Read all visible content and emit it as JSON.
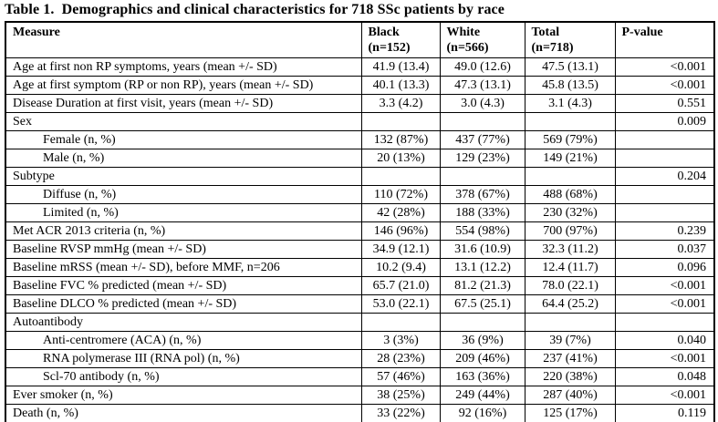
{
  "page": {
    "title": "Table 1.  Demographics and clinical characteristics for 718 SSc patients by race"
  },
  "table": {
    "columns": {
      "measure": {
        "label": "Measure"
      },
      "black": {
        "label": "Black",
        "sublabel": "(n=152)"
      },
      "white": {
        "label": "White",
        "sublabel": "(n=566)"
      },
      "total": {
        "label": "Total",
        "sublabel": "(n=718)"
      },
      "p": {
        "label": "P-value"
      }
    },
    "rows": [
      {
        "measure": "Age at first non RP symptoms, years (mean +/- SD)",
        "indent": false,
        "black": "41.9 (13.4)",
        "white": "49.0 (12.6)",
        "total": "47.5 (13.1)",
        "p": "<0.001"
      },
      {
        "measure": "Age at first symptom (RP or non RP), years (mean +/- SD)",
        "indent": false,
        "black": "40.1 (13.3)",
        "white": "47.3 (13.1)",
        "total": "45.8 (13.5)",
        "p": "<0.001"
      },
      {
        "measure": "Disease Duration at first visit, years (mean +/- SD)",
        "indent": false,
        "black": "3.3 (4.2)",
        "white": "3.0 (4.3)",
        "total": "3.1 (4.3)",
        "p": "0.551"
      },
      {
        "measure": "Sex",
        "indent": false,
        "black": "",
        "white": "",
        "total": "",
        "p": "0.009"
      },
      {
        "measure": "Female (n, %)",
        "indent": true,
        "black": "132 (87%)",
        "white": "437 (77%)",
        "total": "569 (79%)",
        "p": ""
      },
      {
        "measure": "Male (n, %)",
        "indent": true,
        "black": "20 (13%)",
        "white": "129 (23%)",
        "total": "149 (21%)",
        "p": ""
      },
      {
        "measure": "Subtype",
        "indent": false,
        "black": "",
        "white": "",
        "total": "",
        "p": "0.204"
      },
      {
        "measure": "Diffuse (n, %)",
        "indent": true,
        "black": "110 (72%)",
        "white": "378 (67%)",
        "total": "488 (68%)",
        "p": ""
      },
      {
        "measure": "Limited (n, %)",
        "indent": true,
        "black": "42 (28%)",
        "white": "188 (33%)",
        "total": "230 (32%)",
        "p": ""
      },
      {
        "measure": "Met ACR 2013 criteria (n, %)",
        "indent": false,
        "black": "146 (96%)",
        "white": "554 (98%)",
        "total": "700 (97%)",
        "p": "0.239"
      },
      {
        "measure": "Baseline RVSP mmHg (mean +/- SD)",
        "indent": false,
        "black": "34.9 (12.1)",
        "white": "31.6 (10.9)",
        "total": "32.3 (11.2)",
        "p": "0.037"
      },
      {
        "measure": "Baseline mRSS (mean +/- SD), before MMF, n=206",
        "indent": false,
        "black": "10.2 (9.4)",
        "white": "13.1 (12.2)",
        "total": "12.4 (11.7)",
        "p": "0.096"
      },
      {
        "measure": "Baseline FVC % predicted (mean +/- SD)",
        "indent": false,
        "black": "65.7 (21.0)",
        "white": "81.2 (21.3)",
        "total": "78.0 (22.1)",
        "p": "<0.001"
      },
      {
        "measure": "Baseline DLCO % predicted (mean +/- SD)",
        "indent": false,
        "black": "53.0 (22.1)",
        "white": "67.5 (25.1)",
        "total": "64.4 (25.2)",
        "p": "<0.001"
      },
      {
        "measure": "Autoantibody",
        "indent": false,
        "black": "",
        "white": "",
        "total": "",
        "p": ""
      },
      {
        "measure": "Anti-centromere (ACA) (n, %)",
        "indent": true,
        "black": "3 (3%)",
        "white": "36 (9%)",
        "total": "39 (7%)",
        "p": "0.040"
      },
      {
        "measure": "RNA polymerase III (RNA pol) (n, %)",
        "indent": true,
        "black": "28 (23%)",
        "white": "209 (46%)",
        "total": "237 (41%)",
        "p": "<0.001"
      },
      {
        "measure": "Scl-70 antibody (n, %)",
        "indent": true,
        "black": "57 (46%)",
        "white": "163 (36%)",
        "total": "220 (38%)",
        "p": "0.048"
      },
      {
        "measure": "Ever smoker (n, %)",
        "indent": false,
        "black": "38 (25%)",
        "white": "249 (44%)",
        "total": "287 (40%)",
        "p": "<0.001"
      },
      {
        "measure": "Death (n, %)",
        "indent": false,
        "black": "33 (22%)",
        "white": "92 (16%)",
        "total": "125 (17%)",
        "p": "0.119"
      }
    ]
  }
}
